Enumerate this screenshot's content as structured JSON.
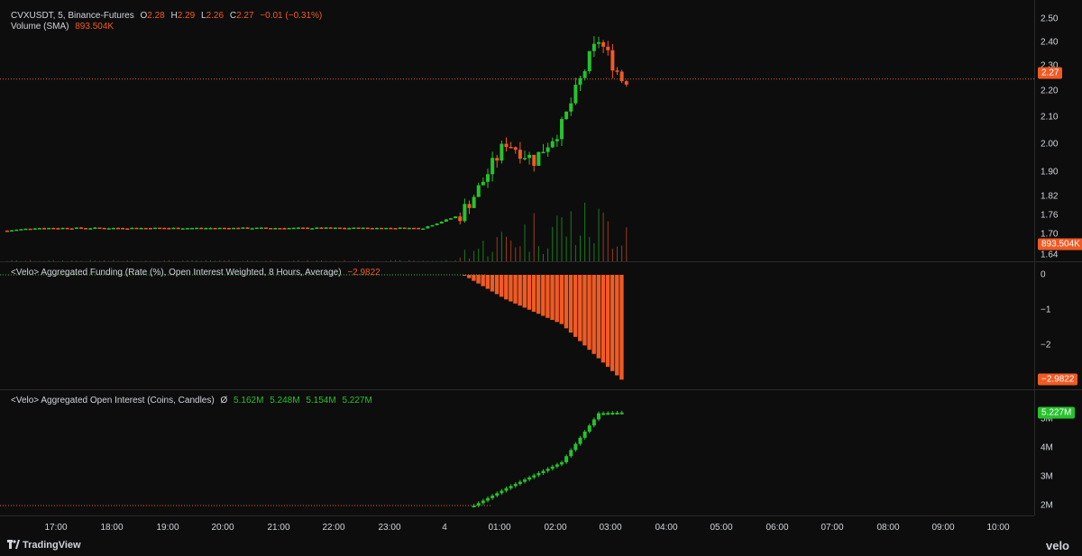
{
  "colors": {
    "up": "#26c22c",
    "down": "#f05a24",
    "background": "#0d0d0d",
    "grid": "#2a2a2a"
  },
  "main_legend": {
    "symbol": "CVXUSDT, 5, Binance-Futures",
    "o_label": "O",
    "o": "2.28",
    "h_label": "H",
    "h": "2.29",
    "l_label": "L",
    "l": "2.26",
    "c_label": "C",
    "c": "2.27",
    "change": "−0.01 (−0.31%)",
    "volume_label": "Volume (SMA)",
    "volume_value": "893.504K"
  },
  "price_axis": {
    "ticks": [
      "2.50",
      "2.40",
      "2.30",
      "2.20",
      "2.10",
      "2.00",
      "1.90",
      "1.82",
      "1.76",
      "1.70",
      "1.64"
    ],
    "last_price": "2.27",
    "volume_tag": "893.504K"
  },
  "funding": {
    "legend": "<Velo> Aggregated Funding (Rate (%), Open Interest Weighted, 8 Hours, Average)",
    "value": "−2.9822",
    "ticks": [
      "0",
      "−1",
      "−2"
    ],
    "tag": "−2.9822"
  },
  "oi": {
    "legend": "<Velo> Aggregated Open Interest (Coins, Candles)",
    "symbol": "Ø",
    "o": "5.162M",
    "h": "5.248M",
    "l": "5.154M",
    "c": "5.227M",
    "ticks": [
      "5M",
      "4M",
      "3M",
      "2M"
    ],
    "tag": "5.227M"
  },
  "time_axis": [
    "17:00",
    "18:00",
    "19:00",
    "20:00",
    "21:00",
    "22:00",
    "23:00",
    "4",
    "01:00",
    "02:00",
    "03:00",
    "04:00",
    "05:00",
    "06:00",
    "07:00",
    "08:00",
    "09:00",
    "10:00"
  ],
  "footer": {
    "logo": "TradingView",
    "brand": "velo"
  },
  "chart_data": [
    {
      "type": "candlestick",
      "title": "CVXUSDT, 5, Binance-Futures",
      "ylim": [
        1.62,
        2.52
      ],
      "x_start": "16:30",
      "x_end": "03:40",
      "interval_minutes": 5,
      "price_samples": [
        {
          "t": "16:30",
          "close": 1.69
        },
        {
          "t": "17:00",
          "close": 1.7
        },
        {
          "t": "20:00",
          "close": 1.7
        },
        {
          "t": "00:00",
          "close": 1.7
        },
        {
          "t": "00:40",
          "close": 1.75
        },
        {
          "t": "01:00",
          "close": 1.85
        },
        {
          "t": "01:30",
          "close": 2.03
        },
        {
          "t": "02:00",
          "close": 1.96
        },
        {
          "t": "02:30",
          "close": 2.09
        },
        {
          "t": "03:00",
          "close": 2.35
        },
        {
          "t": "03:10",
          "close": 2.42
        },
        {
          "t": "03:35",
          "close": 2.27
        }
      ],
      "last": 2.27
    },
    {
      "type": "bar",
      "title": "<Velo> Aggregated Funding (Rate (%), Open Interest Weighted, 8 Hours, Average)",
      "ylim": [
        -3.1,
        0.2
      ],
      "samples": [
        {
          "t": "00:45",
          "value": -0.02
        },
        {
          "t": "01:30",
          "value": -0.7
        },
        {
          "t": "02:30",
          "value": -1.4
        },
        {
          "t": "03:35",
          "value": -2.9822
        }
      ]
    },
    {
      "type": "candlestick",
      "title": "<Velo> Aggregated Open Interest (Coins, Candles)",
      "ylim": [
        "1.8M",
        "5.6M"
      ],
      "samples": [
        {
          "t": "16:30",
          "value": 2.0
        },
        {
          "t": "00:55",
          "value": 2.0
        },
        {
          "t": "01:30",
          "value": 2.6
        },
        {
          "t": "02:30",
          "value": 3.5
        },
        {
          "t": "03:10",
          "value": 5.2
        },
        {
          "t": "03:35",
          "value": 5.227
        }
      ]
    }
  ]
}
